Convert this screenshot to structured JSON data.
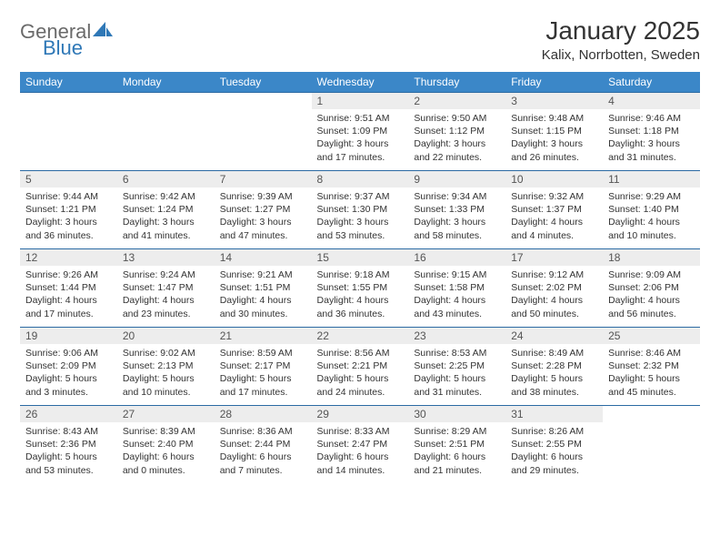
{
  "brand": {
    "part1": "General",
    "part2": "Blue"
  },
  "title": "January 2025",
  "location": "Kalix, Norrbotten, Sweden",
  "colors": {
    "header_bg": "#3b87c8",
    "header_text": "#ffffff",
    "row_rule": "#2b6aa3",
    "daynum_bg": "#ededed",
    "brand_gray": "#6a6a6a",
    "brand_blue": "#2f78b7"
  },
  "day_labels": [
    "Sunday",
    "Monday",
    "Tuesday",
    "Wednesday",
    "Thursday",
    "Friday",
    "Saturday"
  ],
  "weeks": [
    [
      {
        "n": "",
        "sr": "",
        "ss": "",
        "dl": "",
        "empty": true
      },
      {
        "n": "",
        "sr": "",
        "ss": "",
        "dl": "",
        "empty": true
      },
      {
        "n": "",
        "sr": "",
        "ss": "",
        "dl": "",
        "empty": true
      },
      {
        "n": "1",
        "sr": "9:51 AM",
        "ss": "1:09 PM",
        "dl": "3 hours and 17 minutes."
      },
      {
        "n": "2",
        "sr": "9:50 AM",
        "ss": "1:12 PM",
        "dl": "3 hours and 22 minutes."
      },
      {
        "n": "3",
        "sr": "9:48 AM",
        "ss": "1:15 PM",
        "dl": "3 hours and 26 minutes."
      },
      {
        "n": "4",
        "sr": "9:46 AM",
        "ss": "1:18 PM",
        "dl": "3 hours and 31 minutes."
      }
    ],
    [
      {
        "n": "5",
        "sr": "9:44 AM",
        "ss": "1:21 PM",
        "dl": "3 hours and 36 minutes."
      },
      {
        "n": "6",
        "sr": "9:42 AM",
        "ss": "1:24 PM",
        "dl": "3 hours and 41 minutes."
      },
      {
        "n": "7",
        "sr": "9:39 AM",
        "ss": "1:27 PM",
        "dl": "3 hours and 47 minutes."
      },
      {
        "n": "8",
        "sr": "9:37 AM",
        "ss": "1:30 PM",
        "dl": "3 hours and 53 minutes."
      },
      {
        "n": "9",
        "sr": "9:34 AM",
        "ss": "1:33 PM",
        "dl": "3 hours and 58 minutes."
      },
      {
        "n": "10",
        "sr": "9:32 AM",
        "ss": "1:37 PM",
        "dl": "4 hours and 4 minutes."
      },
      {
        "n": "11",
        "sr": "9:29 AM",
        "ss": "1:40 PM",
        "dl": "4 hours and 10 minutes."
      }
    ],
    [
      {
        "n": "12",
        "sr": "9:26 AM",
        "ss": "1:44 PM",
        "dl": "4 hours and 17 minutes."
      },
      {
        "n": "13",
        "sr": "9:24 AM",
        "ss": "1:47 PM",
        "dl": "4 hours and 23 minutes."
      },
      {
        "n": "14",
        "sr": "9:21 AM",
        "ss": "1:51 PM",
        "dl": "4 hours and 30 minutes."
      },
      {
        "n": "15",
        "sr": "9:18 AM",
        "ss": "1:55 PM",
        "dl": "4 hours and 36 minutes."
      },
      {
        "n": "16",
        "sr": "9:15 AM",
        "ss": "1:58 PM",
        "dl": "4 hours and 43 minutes."
      },
      {
        "n": "17",
        "sr": "9:12 AM",
        "ss": "2:02 PM",
        "dl": "4 hours and 50 minutes."
      },
      {
        "n": "18",
        "sr": "9:09 AM",
        "ss": "2:06 PM",
        "dl": "4 hours and 56 minutes."
      }
    ],
    [
      {
        "n": "19",
        "sr": "9:06 AM",
        "ss": "2:09 PM",
        "dl": "5 hours and 3 minutes."
      },
      {
        "n": "20",
        "sr": "9:02 AM",
        "ss": "2:13 PM",
        "dl": "5 hours and 10 minutes."
      },
      {
        "n": "21",
        "sr": "8:59 AM",
        "ss": "2:17 PM",
        "dl": "5 hours and 17 minutes."
      },
      {
        "n": "22",
        "sr": "8:56 AM",
        "ss": "2:21 PM",
        "dl": "5 hours and 24 minutes."
      },
      {
        "n": "23",
        "sr": "8:53 AM",
        "ss": "2:25 PM",
        "dl": "5 hours and 31 minutes."
      },
      {
        "n": "24",
        "sr": "8:49 AM",
        "ss": "2:28 PM",
        "dl": "5 hours and 38 minutes."
      },
      {
        "n": "25",
        "sr": "8:46 AM",
        "ss": "2:32 PM",
        "dl": "5 hours and 45 minutes."
      }
    ],
    [
      {
        "n": "26",
        "sr": "8:43 AM",
        "ss": "2:36 PM",
        "dl": "5 hours and 53 minutes."
      },
      {
        "n": "27",
        "sr": "8:39 AM",
        "ss": "2:40 PM",
        "dl": "6 hours and 0 minutes."
      },
      {
        "n": "28",
        "sr": "8:36 AM",
        "ss": "2:44 PM",
        "dl": "6 hours and 7 minutes."
      },
      {
        "n": "29",
        "sr": "8:33 AM",
        "ss": "2:47 PM",
        "dl": "6 hours and 14 minutes."
      },
      {
        "n": "30",
        "sr": "8:29 AM",
        "ss": "2:51 PM",
        "dl": "6 hours and 21 minutes."
      },
      {
        "n": "31",
        "sr": "8:26 AM",
        "ss": "2:55 PM",
        "dl": "6 hours and 29 minutes."
      },
      {
        "n": "",
        "sr": "",
        "ss": "",
        "dl": "",
        "empty": true
      }
    ]
  ],
  "labels": {
    "sunrise": "Sunrise:",
    "sunset": "Sunset:",
    "daylight": "Daylight:"
  }
}
